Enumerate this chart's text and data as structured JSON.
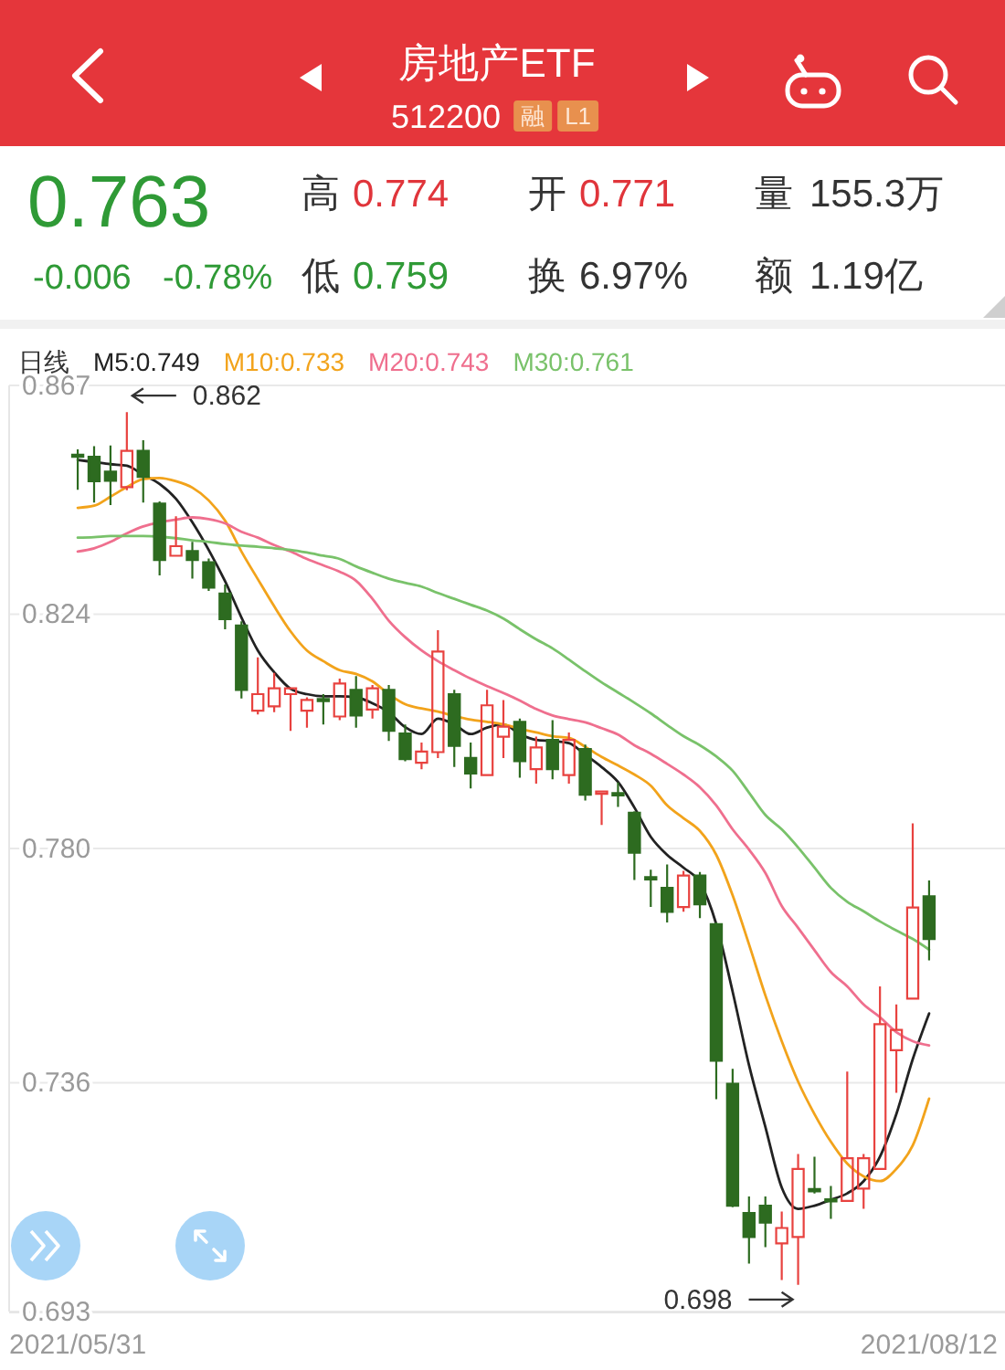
{
  "chart_data": {
    "type": "candlestick",
    "title": "房地产ETF",
    "subtitle": "512200",
    "legend_title": "日线",
    "categories": [
      "2021/05/31",
      null,
      null,
      null,
      null,
      null,
      null,
      null,
      null,
      null,
      null,
      null,
      null,
      null,
      null,
      null,
      null,
      null,
      null,
      null,
      null,
      null,
      null,
      null,
      null,
      null,
      null,
      null,
      null,
      null,
      null,
      null,
      null,
      null,
      null,
      null,
      null,
      null,
      null,
      null,
      null,
      null,
      null,
      null,
      null,
      null,
      null,
      null,
      null,
      null,
      null,
      null,
      "2021/08/12"
    ],
    "ohlc": [
      [
        0.854,
        0.855,
        0.8474,
        0.8536
      ],
      [
        0.8536,
        0.8556,
        0.845,
        0.849
      ],
      [
        0.8508,
        0.8557,
        0.8445,
        0.8491
      ],
      [
        0.8479,
        0.862,
        0.8473,
        0.8547
      ],
      [
        0.8547,
        0.8567,
        0.845,
        0.8498
      ],
      [
        0.8448,
        0.8452,
        0.8313,
        0.8342
      ],
      [
        0.835,
        0.8424,
        0.8349,
        0.8368
      ],
      [
        0.8359,
        0.8376,
        0.8307,
        0.8342
      ],
      [
        0.8338,
        0.8345,
        0.8284,
        0.829
      ],
      [
        0.8279,
        0.8296,
        0.8212,
        0.8231
      ],
      [
        0.8219,
        0.8227,
        0.8082,
        0.8098
      ],
      [
        0.8059,
        0.8159,
        0.8052,
        0.809
      ],
      [
        0.8067,
        0.813,
        0.8056,
        0.8101
      ],
      [
        0.809,
        0.8101,
        0.8021,
        0.8101
      ],
      [
        0.8059,
        0.8084,
        0.8027,
        0.8079
      ],
      [
        0.8081,
        0.809,
        0.8033,
        0.8078
      ],
      [
        0.8048,
        0.8119,
        0.8041,
        0.811
      ],
      [
        0.8098,
        0.8124,
        0.8027,
        0.805
      ],
      [
        0.8061,
        0.8107,
        0.8044,
        0.8101
      ],
      [
        0.8098,
        0.8107,
        0.8002,
        0.8021
      ],
      [
        0.8016,
        0.8033,
        0.7964,
        0.7968
      ],
      [
        0.7961,
        0.7999,
        0.7949,
        0.7982
      ],
      [
        0.7981,
        0.821,
        0.797,
        0.817
      ],
      [
        0.809,
        0.8098,
        0.7953,
        0.7993
      ],
      [
        0.797,
        0.7999,
        0.7913,
        0.7941
      ],
      [
        0.7938,
        0.8098,
        0.7938,
        0.8069
      ],
      [
        0.801,
        0.8079,
        0.797,
        0.8029
      ],
      [
        0.8038,
        0.8044,
        0.7933,
        0.7964
      ],
      [
        0.7949,
        0.801,
        0.7922,
        0.799
      ],
      [
        0.8004,
        0.8041,
        0.793,
        0.7949
      ],
      [
        0.7938,
        0.8018,
        0.7922,
        0.8004
      ],
      [
        0.7987,
        0.7995,
        0.789,
        0.7901
      ],
      [
        0.7904,
        0.7907,
        0.7844,
        0.7907
      ],
      [
        0.7904,
        0.7924,
        0.7878,
        0.7901
      ],
      [
        0.7867,
        0.787,
        0.7741,
        0.7792
      ],
      [
        0.7746,
        0.776,
        0.769,
        0.7743
      ],
      [
        0.7726,
        0.777,
        0.7661,
        0.7681
      ],
      [
        0.769,
        0.7758,
        0.7681,
        0.7749
      ],
      [
        0.7749,
        0.7756,
        0.7669,
        0.7695
      ],
      [
        0.7658,
        0.7661,
        0.7329,
        0.7401
      ],
      [
        0.7358,
        0.7386,
        0.7126,
        0.7129
      ],
      [
        0.7115,
        0.7146,
        0.702,
        0.707
      ],
      [
        0.7129,
        0.7146,
        0.7051,
        0.7097
      ],
      [
        0.7058,
        0.7118,
        0.6989,
        0.7087
      ],
      [
        0.707,
        0.7226,
        0.698,
        0.7198
      ],
      [
        0.716,
        0.7221,
        0.7152,
        0.7157
      ],
      [
        0.7141,
        0.7166,
        0.7104,
        0.7138
      ],
      [
        0.7138,
        0.7381,
        0.7138,
        0.7218
      ],
      [
        0.7161,
        0.7226,
        0.7123,
        0.7218
      ],
      [
        0.7198,
        0.7541,
        0.7198,
        0.747
      ],
      [
        0.7421,
        0.7507,
        0.7341,
        0.7459
      ],
      [
        0.7518,
        0.7847,
        0.7518,
        0.7689
      ],
      [
        0.771,
        0.774,
        0.759,
        0.763
      ]
    ],
    "colors": [
      "#2d6b20",
      "#2d6b20",
      "#2d6b20",
      "#e8423f",
      "#2d6b20",
      "#2d6b20",
      "#e8423f",
      "#2d6b20",
      "#2d6b20",
      "#2d6b20",
      "#2d6b20",
      "#e8423f",
      "#e8423f",
      "#e8423f",
      "#e8423f",
      "#2d6b20",
      "#e8423f",
      "#2d6b20",
      "#e8423f",
      "#2d6b20",
      "#2d6b20",
      "#e8423f",
      "#e8423f",
      "#2d6b20",
      "#2d6b20",
      "#e8423f",
      "#e8423f",
      "#2d6b20",
      "#e8423f",
      "#2d6b20",
      "#e8423f",
      "#2d6b20",
      "#e8423f",
      "#2d6b20",
      "#2d6b20",
      "#2d6b20",
      "#2d6b20",
      "#e8423f",
      "#2d6b20",
      "#2d6b20",
      "#2d6b20",
      "#2d6b20",
      "#2d6b20",
      "#e8423f",
      "#e8423f",
      "#2d6b20",
      "#2d6b20",
      "#e8423f",
      "#e8423f",
      "#e8423f",
      "#e8423f",
      "#e8423f",
      "#2d6b20"
    ],
    "series": [
      {
        "type": "line",
        "name": "M5:0.749",
        "color": "#222222",
        "values": [
          0.853,
          0.8526,
          0.8522,
          0.8519,
          0.8502,
          0.8485,
          0.8457,
          0.8413,
          0.8361,
          0.8302,
          0.8234,
          0.8172,
          0.8131,
          0.81,
          0.809,
          0.8086,
          0.8086,
          0.8084,
          0.8073,
          0.8056,
          0.8028,
          0.8015,
          0.8044,
          0.8033,
          0.8015,
          0.8027,
          0.8033,
          0.8015,
          0.8004,
          0.8002,
          0.7998,
          0.7976,
          0.7953,
          0.7925,
          0.7877,
          0.7822,
          0.7788,
          0.7764,
          0.7736,
          0.7658,
          0.7531,
          0.7393,
          0.7277,
          0.7163,
          0.7123,
          0.7129,
          0.714,
          0.7152,
          0.7175,
          0.7221,
          0.7301,
          0.7404,
          0.749
        ]
      },
      {
        "type": "line",
        "name": "M10:0.733",
        "color": "#f2a31b",
        "values": [
          0.844,
          0.8444,
          0.8461,
          0.8479,
          0.8494,
          0.8496,
          0.849,
          0.8478,
          0.8454,
          0.8416,
          0.8358,
          0.8306,
          0.8255,
          0.8208,
          0.8172,
          0.8152,
          0.8135,
          0.8128,
          0.8114,
          0.809,
          0.8071,
          0.8063,
          0.8057,
          0.8049,
          0.8042,
          0.8038,
          0.8033,
          0.8025,
          0.8018,
          0.8011,
          0.8008,
          0.7991,
          0.7972,
          0.7956,
          0.7939,
          0.7918,
          0.7881,
          0.7857,
          0.7833,
          0.7788,
          0.7712,
          0.762,
          0.7524,
          0.7438,
          0.7362,
          0.7301,
          0.7249,
          0.7208,
          0.7184,
          0.7175,
          0.7198,
          0.7242,
          0.733
        ]
      },
      {
        "type": "line",
        "name": "M20:0.743",
        "color": "#ef6f8e",
        "values": [
          0.8358,
          0.8364,
          0.8376,
          0.8392,
          0.8405,
          0.8413,
          0.8418,
          0.8422,
          0.8419,
          0.8411,
          0.8395,
          0.8384,
          0.837,
          0.8358,
          0.8344,
          0.8332,
          0.832,
          0.8303,
          0.8269,
          0.8228,
          0.8197,
          0.8172,
          0.8152,
          0.8135,
          0.8119,
          0.8105,
          0.8092,
          0.8078,
          0.8062,
          0.805,
          0.8043,
          0.8037,
          0.8026,
          0.8014,
          0.7994,
          0.7978,
          0.7959,
          0.7939,
          0.7915,
          0.7881,
          0.7836,
          0.7798,
          0.7754,
          0.7692,
          0.7651,
          0.7609,
          0.7568,
          0.7541,
          0.7507,
          0.7483,
          0.7455,
          0.7438,
          0.743
        ]
      },
      {
        "type": "line",
        "name": "M30:0.761",
        "color": "#79c26a",
        "values": [
          0.8384,
          0.8385,
          0.8387,
          0.8387,
          0.8387,
          0.8386,
          0.8383,
          0.8379,
          0.8376,
          0.8372,
          0.8369,
          0.8367,
          0.8364,
          0.8361,
          0.8356,
          0.835,
          0.8344,
          0.833,
          0.8318,
          0.8307,
          0.8299,
          0.8292,
          0.828,
          0.8269,
          0.8258,
          0.8247,
          0.8232,
          0.8212,
          0.8193,
          0.8176,
          0.8155,
          0.8133,
          0.8112,
          0.8093,
          0.8074,
          0.8054,
          0.8032,
          0.8011,
          0.7994,
          0.7973,
          0.7946,
          0.7905,
          0.7863,
          0.7836,
          0.7802,
          0.7764,
          0.7726,
          0.77,
          0.7682,
          0.7663,
          0.7646,
          0.763,
          0.761
        ]
      }
    ],
    "ylim": [
      0.693,
      0.867
    ],
    "yticks": [
      0.867,
      0.824,
      {
        "value": 0.78,
        "label": "0.780"
      },
      0.736,
      0.693
    ],
    "grid": "y",
    "legend": "top",
    "annotations": [
      "0.862",
      "0.698",
      "融",
      "L1",
      "0.763",
      "-0.006",
      "-0.78%",
      "高",
      "0.774",
      "开",
      "0.771",
      "量",
      "155.3万",
      "低",
      "0.759",
      "换",
      "6.97%",
      "额",
      "1.19亿"
    ]
  }
}
